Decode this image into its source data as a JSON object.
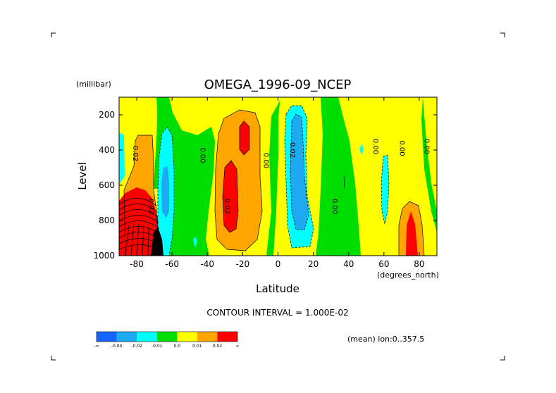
{
  "chart_data": {
    "type": "heatmap",
    "title": "OMEGA_1996-09_NCEP",
    "xlabel": "Latitude",
    "xunits": "(degrees_north)",
    "ylabel": "Level",
    "yunits": "(millibar)",
    "xlim": [
      -90,
      90
    ],
    "ylim": [
      1000,
      100
    ],
    "xticks": [
      -80,
      -60,
      -40,
      -20,
      0,
      20,
      40,
      60,
      80
    ],
    "yticks": [
      1000,
      800,
      600,
      400,
      200
    ],
    "contour_interval_text": "CONTOUR INTERVAL = 1.000E-02",
    "mean_note": "(mean) lon:0..357.5",
    "colorbar": {
      "labels": [
        "-∞",
        "-0.04",
        "-0.02",
        "-0.01",
        "0.0",
        "0.01",
        "0.02",
        "∞"
      ],
      "colors": [
        "#1464ff",
        "#1eaaf0",
        "#00ffff",
        "#00dd00",
        "#ffff00",
        "#ffa500",
        "#ff0000"
      ]
    },
    "contour_labels": [
      {
        "text": "0.02",
        "lat": -82,
        "lev": 420
      },
      {
        "text": "0.02",
        "lat": -73,
        "lev": 720
      },
      {
        "text": "0.00",
        "lat": -44,
        "lev": 430
      },
      {
        "text": "0.02",
        "lat": -30,
        "lev": 720
      },
      {
        "text": "0.00",
        "lat": -8,
        "lev": 460
      },
      {
        "text": "0.02",
        "lat": 7,
        "lev": 400
      },
      {
        "text": "0.00",
        "lat": 31,
        "lev": 720
      },
      {
        "text": "0.00",
        "lat": 54,
        "lev": 380
      },
      {
        "text": "0.00",
        "lat": 69,
        "lev": 390
      },
      {
        "text": "0.00",
        "lat": 83,
        "lev": 380
      }
    ]
  }
}
